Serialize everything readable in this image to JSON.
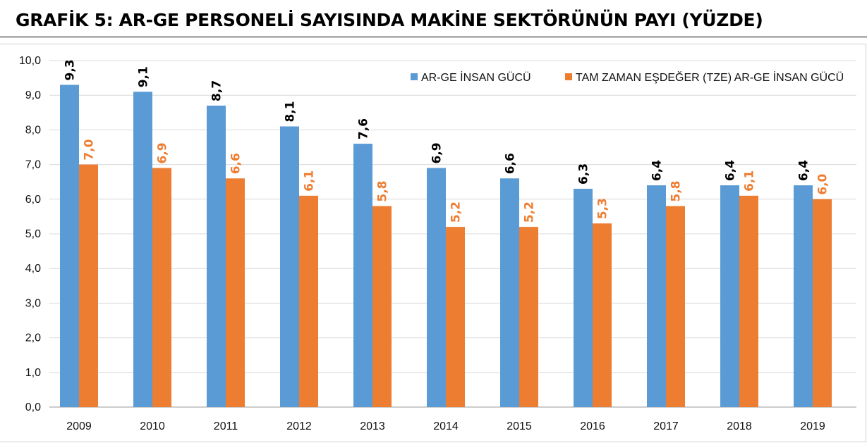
{
  "title": "GRAFİK 5: AR-GE PERSONELİ SAYISINDA MAKİNE SEKTÖRÜNÜN PAYI (YÜZDE)",
  "chart_data": {
    "type": "bar",
    "title": "GRAFİK 5: AR-GE PERSONELİ SAYISINDA MAKİNE SEKTÖRÜNÜN PAYI (YÜZDE)",
    "categories": [
      "2009",
      "2010",
      "2011",
      "2012",
      "2013",
      "2014",
      "2015",
      "2016",
      "2017",
      "2018",
      "2019"
    ],
    "series": [
      {
        "name": "AR-GE İNSAN GÜCÜ",
        "color": "#5B9BD5",
        "label_color": "#000000",
        "values": [
          9.3,
          9.1,
          8.7,
          8.1,
          7.6,
          6.9,
          6.6,
          6.3,
          6.4,
          6.4,
          6.4
        ],
        "labels": [
          "9,3",
          "9,1",
          "8,7",
          "8,1",
          "7,6",
          "6,9",
          "6,6",
          "6,3",
          "6,4",
          "6,4",
          "6,4"
        ]
      },
      {
        "name": "TAM ZAMAN EŞDEĞER (TZE) AR-GE İNSAN GÜCÜ",
        "color": "#ED7D31",
        "label_color": "#ED7D31",
        "values": [
          7.0,
          6.9,
          6.6,
          6.1,
          5.8,
          5.2,
          5.2,
          5.3,
          5.8,
          6.1,
          6.0
        ],
        "labels": [
          "7,0",
          "6,9",
          "6,6",
          "6,1",
          "5,8",
          "5,2",
          "5,2",
          "5,3",
          "5,8",
          "6,1",
          "6,0"
        ]
      }
    ],
    "ylim": [
      0,
      10
    ],
    "yticks": [
      "0,0",
      "1,0",
      "2,0",
      "3,0",
      "4,0",
      "5,0",
      "6,0",
      "7,0",
      "8,0",
      "9,0",
      "10,0"
    ],
    "grid": true,
    "legend_position": "top-right",
    "xlabel": "",
    "ylabel": ""
  }
}
